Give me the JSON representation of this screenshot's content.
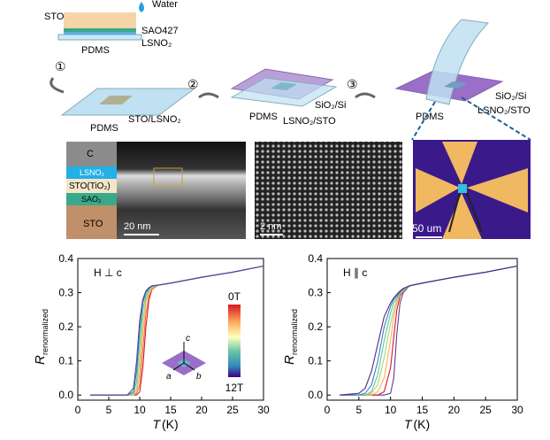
{
  "schematic": {
    "water": "Water",
    "sto": "STO",
    "sao": "SAO427",
    "lsno": "LSNO₂",
    "pdms_top": "PDMS",
    "step1": "①",
    "step2": "②",
    "step3": "③",
    "pdms1": "PDMS",
    "sto_lsno": "STO/LSNO₂",
    "pdms2": "PDMS",
    "sio2_2": "SiO₂/Si",
    "lsno_sto2": "LSNO₂/STO",
    "pdms3": "PDMS",
    "sio2_3": "SiO₂/Si",
    "lsno_sto3": "LSNO₂/STO"
  },
  "micrographs": {
    "layers": [
      "C",
      "LSNO₂",
      "STO(TiO₂)",
      "SAO₂",
      "STO"
    ],
    "scale1": "20 nm",
    "scale2": "2 nm",
    "scale3": "50 um"
  },
  "chart_data": [
    {
      "type": "line",
      "annotation": "H ⊥ c",
      "y_label": "R",
      "y_label_sub": "renormalized",
      "x_label": "T",
      "x_unit": "(K)",
      "xlim": [
        0,
        30
      ],
      "xticks": [
        0,
        5,
        10,
        15,
        20,
        25,
        30
      ],
      "ylim": [
        -0.015,
        0.4
      ],
      "yticks": [
        {
          "value": 0,
          "label": "0.0"
        },
        0.1,
        0.2,
        0.3,
        0.4
      ],
      "colorbar": {
        "top": "0T",
        "bottom": "12T"
      },
      "inset": {
        "a": "a",
        "b": "b",
        "c": "c"
      },
      "x": [
        2,
        8,
        9,
        9.5,
        10,
        10.5,
        11,
        11.5,
        12,
        13,
        15,
        20,
        25,
        30
      ],
      "series": [
        {
          "color": "#d7191c",
          "values": [
            0,
            0,
            0,
            0,
            0.01,
            0.08,
            0.2,
            0.28,
            0.31,
            0.322,
            0.328,
            0.345,
            0.36,
            0.378
          ]
        },
        {
          "color": "#f46d43",
          "values": [
            0,
            0,
            0,
            0.005,
            0.03,
            0.13,
            0.24,
            0.29,
            0.31,
            0.322,
            0.328,
            0.345,
            0.36,
            0.378
          ]
        },
        {
          "color": "#fdae61",
          "values": [
            0,
            0,
            0,
            0.01,
            0.06,
            0.18,
            0.27,
            0.3,
            0.315,
            0.322,
            0.328,
            0.345,
            0.36,
            0.378
          ]
        },
        {
          "color": "#a6d96a",
          "values": [
            0,
            0,
            0,
            0.02,
            0.1,
            0.22,
            0.28,
            0.305,
            0.315,
            0.322,
            0.328,
            0.345,
            0.36,
            0.378
          ]
        },
        {
          "color": "#66c2a5",
          "values": [
            0,
            0,
            0.005,
            0.04,
            0.15,
            0.25,
            0.29,
            0.31,
            0.318,
            0.322,
            0.328,
            0.345,
            0.36,
            0.378
          ]
        },
        {
          "color": "#3288bd",
          "values": [
            0,
            0,
            0.01,
            0.07,
            0.19,
            0.27,
            0.3,
            0.312,
            0.32,
            0.322,
            0.328,
            0.345,
            0.36,
            0.378
          ]
        },
        {
          "color": "#5e3c99",
          "values": [
            0,
            0,
            0.02,
            0.1,
            0.22,
            0.28,
            0.305,
            0.315,
            0.32,
            0.322,
            0.328,
            0.345,
            0.36,
            0.378
          ]
        }
      ]
    },
    {
      "type": "line",
      "annotation": "H ∥ c",
      "y_label": "R",
      "y_label_sub": "renormalized",
      "x_label": "T",
      "x_unit": "(K)",
      "xlim": [
        0,
        30
      ],
      "xticks": [
        0,
        5,
        10,
        15,
        20,
        25,
        30
      ],
      "ylim": [
        -0.015,
        0.4
      ],
      "yticks": [
        {
          "value": 0,
          "label": "0.0"
        },
        0.1,
        0.2,
        0.3,
        0.4
      ],
      "x": [
        2,
        5,
        6,
        7,
        8,
        9,
        10,
        10.5,
        11,
        11.5,
        12,
        13,
        15,
        20,
        25,
        30
      ],
      "series": [
        {
          "color": "#5e3c99",
          "values": [
            0,
            0,
            0,
            0,
            0,
            0,
            0.005,
            0.05,
            0.18,
            0.27,
            0.3,
            0.32,
            0.328,
            0.345,
            0.36,
            0.378
          ]
        },
        {
          "color": "#d7191c",
          "values": [
            0,
            0,
            0,
            0,
            0,
            0.01,
            0.08,
            0.17,
            0.25,
            0.29,
            0.305,
            0.32,
            0.328,
            0.345,
            0.36,
            0.378
          ]
        },
        {
          "color": "#fdae61",
          "values": [
            0,
            0,
            0,
            0,
            0.01,
            0.05,
            0.16,
            0.23,
            0.27,
            0.295,
            0.305,
            0.32,
            0.328,
            0.345,
            0.36,
            0.378
          ]
        },
        {
          "color": "#a6d96a",
          "values": [
            0,
            0,
            0,
            0.005,
            0.03,
            0.11,
            0.21,
            0.25,
            0.28,
            0.298,
            0.308,
            0.32,
            0.328,
            0.345,
            0.36,
            0.378
          ]
        },
        {
          "color": "#66c2a5",
          "values": [
            0,
            0,
            0,
            0.01,
            0.06,
            0.16,
            0.24,
            0.27,
            0.285,
            0.3,
            0.31,
            0.32,
            0.328,
            0.345,
            0.36,
            0.378
          ]
        },
        {
          "color": "#3288bd",
          "values": [
            0,
            0,
            0.005,
            0.03,
            0.1,
            0.2,
            0.26,
            0.28,
            0.29,
            0.302,
            0.31,
            0.32,
            0.328,
            0.345,
            0.36,
            0.378
          ]
        },
        {
          "color": "#542788",
          "values": [
            0,
            0.005,
            0.02,
            0.07,
            0.15,
            0.23,
            0.27,
            0.285,
            0.295,
            0.305,
            0.312,
            0.32,
            0.328,
            0.345,
            0.36,
            0.378
          ]
        }
      ]
    }
  ]
}
